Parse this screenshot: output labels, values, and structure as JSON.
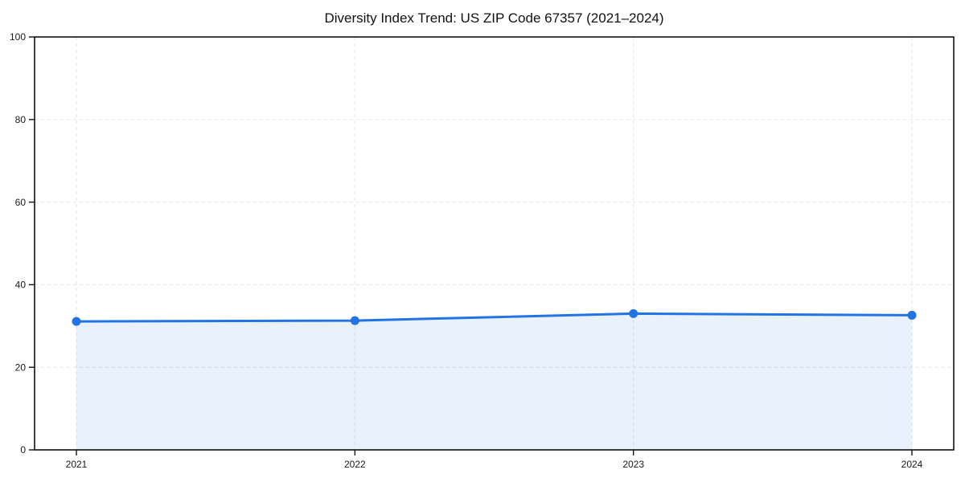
{
  "chart_data": {
    "type": "area",
    "title": "Diversity Index Trend: US ZIP Code 67357 (2021–2024)",
    "categories": [
      "2021",
      "2022",
      "2023",
      "2024"
    ],
    "series": [
      {
        "name": "Diversity Index",
        "values": [
          31.1,
          31.3,
          33.0,
          32.6
        ]
      }
    ],
    "xlabel": "",
    "ylabel": "",
    "ylim": [
      0,
      100
    ],
    "yticks": [
      0,
      20,
      40,
      60,
      80,
      100
    ],
    "grid": true,
    "grid_style": "dashed",
    "legend_position": "none",
    "colors": {
      "line": "#2273e3",
      "marker": "#2273e3",
      "fill": "rgba(34, 115, 227, 0.10)",
      "grid": "#e3e3e3",
      "spine": "#111111",
      "tick_text": "#1a1a1a",
      "background": "#ffffff"
    }
  }
}
